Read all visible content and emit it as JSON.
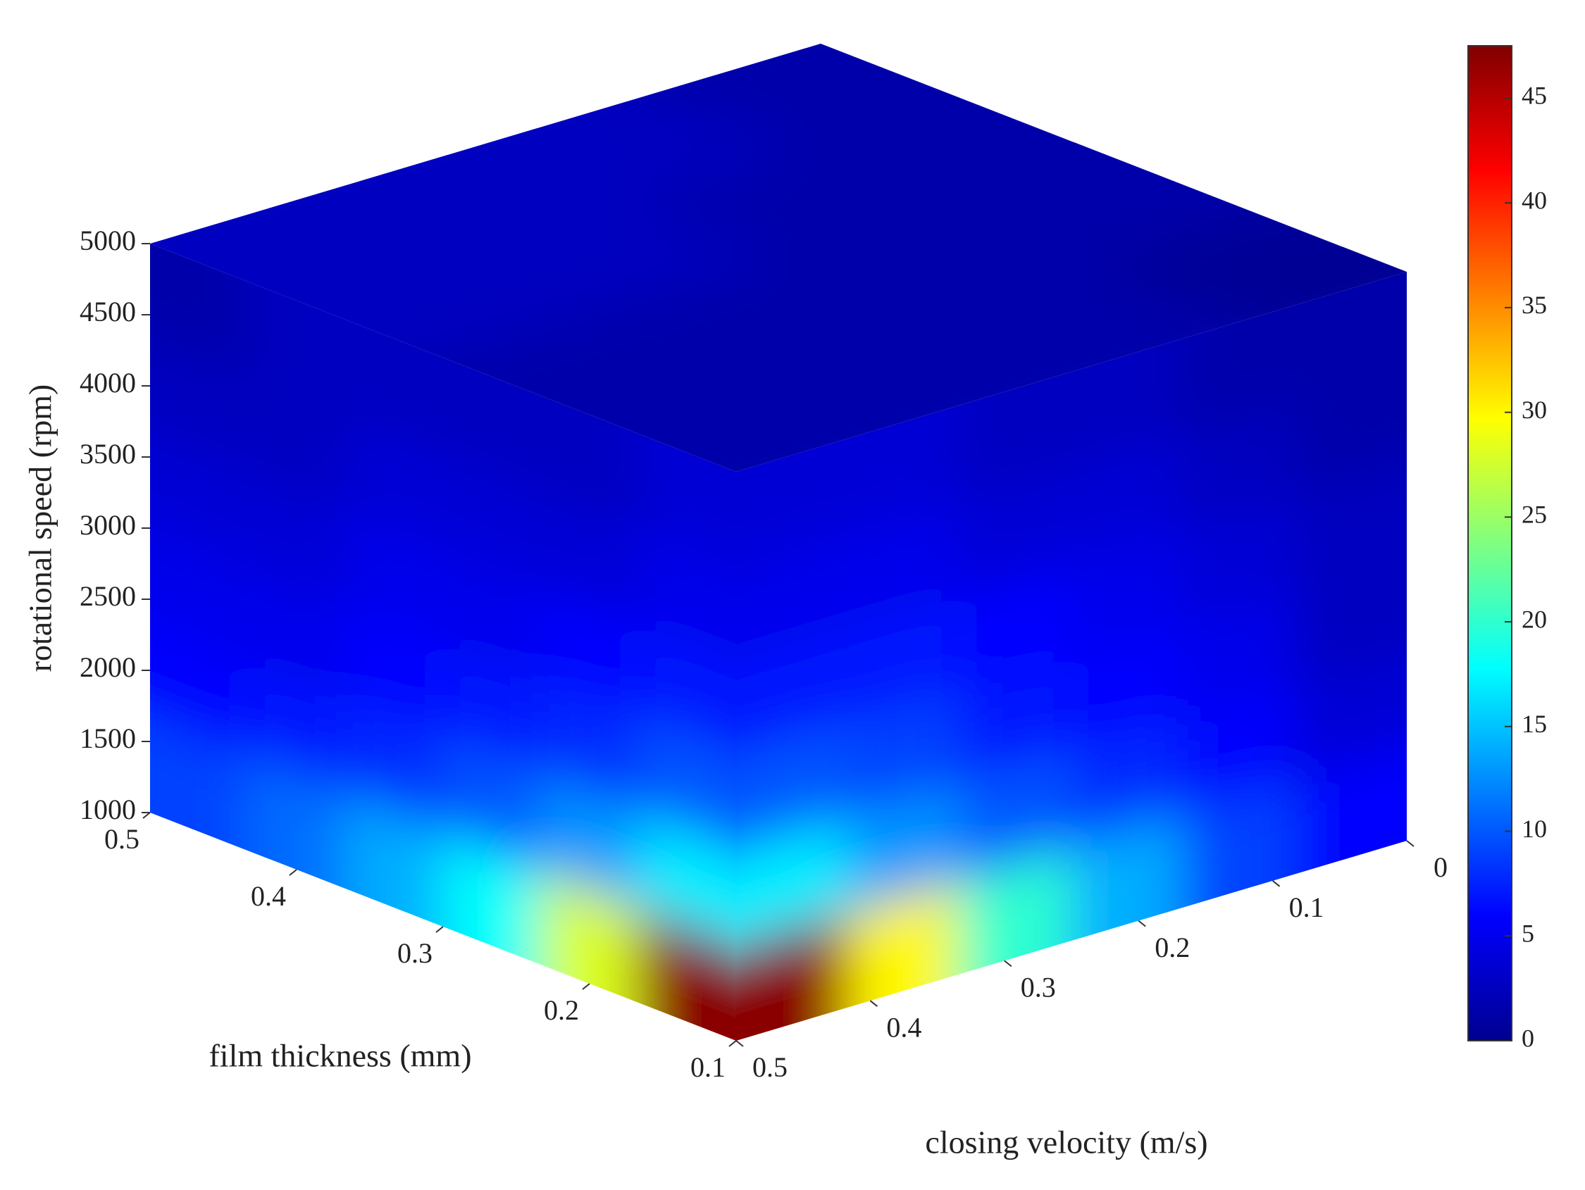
{
  "chart_data": {
    "type": "volume3d",
    "colormap": "jet",
    "x_label": "film thickness (mm)",
    "y_label": "closing velocity (m/s)",
    "z_label": "rotational speed (rpm)",
    "xlim": [
      0.1,
      0.5
    ],
    "xticks": [
      0.1,
      0.2,
      0.3,
      0.4,
      0.5
    ],
    "ylim": [
      0,
      0.5
    ],
    "yticks": [
      0,
      0.1,
      0.2,
      0.3,
      0.4,
      0.5
    ],
    "zlim": [
      1000,
      5000
    ],
    "zticks": [
      1000,
      1500,
      2000,
      2500,
      3000,
      3500,
      4000,
      4500,
      5000
    ],
    "clim": [
      0,
      47.5
    ],
    "cticks": [
      0,
      5,
      10,
      15,
      20,
      25,
      30,
      35,
      40,
      45
    ],
    "faces": {
      "left": {
        "values": [
          [
            9,
            11,
            14,
            18,
            28,
            47
          ],
          [
            6,
            7,
            8,
            10,
            13,
            17
          ],
          [
            5,
            5,
            6,
            7,
            8,
            10
          ],
          [
            4,
            4,
            5,
            5,
            6,
            7
          ],
          [
            3,
            3,
            4,
            4,
            4,
            5
          ],
          [
            2,
            3,
            3,
            3,
            3,
            4
          ]
        ]
      },
      "right": {
        "values": [
          [
            47,
            30,
            20,
            14,
            9,
            6
          ],
          [
            17,
            13,
            10,
            8,
            6,
            4
          ],
          [
            10,
            9,
            7,
            6,
            5,
            3
          ],
          [
            7,
            7,
            6,
            5,
            4,
            3
          ],
          [
            5,
            5,
            4,
            4,
            3,
            2
          ],
          [
            4,
            4,
            3,
            3,
            2,
            2
          ]
        ]
      },
      "top": {
        "values": [
          [
            3,
            3,
            2,
            2
          ],
          [
            3,
            3,
            2,
            2
          ],
          [
            3,
            2,
            2,
            2
          ],
          [
            2,
            2,
            2,
            1
          ]
        ]
      }
    }
  }
}
